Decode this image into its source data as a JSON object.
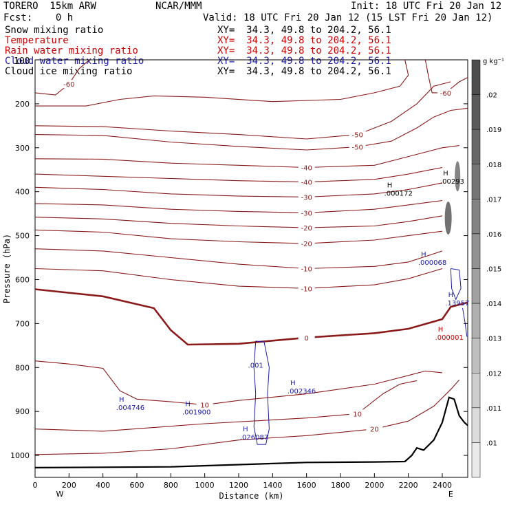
{
  "header": {
    "model": "TORERO  15km ARW",
    "center": "NCAR/MMM",
    "init": "Init: 18 UTC Fri 20 Jan 12",
    "fcst": "Fcst:    0 h",
    "valid": "Valid: 18 UTC Fri 20 Jan 12 (15 LST Fri 20 Jan 12)",
    "fields": [
      {
        "name": "Snow mixing ratio",
        "xy": "XY=  34.3, 49.8 to 204.2, 56.1",
        "color": "#000000"
      },
      {
        "name": "Temperature",
        "xy": "XY=  34.3, 49.8 to 204.2, 56.1",
        "color": "#cc0000"
      },
      {
        "name": "Rain water mixing ratio",
        "xy": "XY=  34.3, 49.8 to 204.2, 56.1",
        "color": "#cc0000"
      },
      {
        "name": "Cloud water mixing ratio",
        "xy": "XY=  34.3, 49.8 to 204.2, 56.1",
        "color": "#1a1aaa"
      },
      {
        "name": "Cloud ice mixing ratio",
        "xy": "XY=  34.3, 49.8 to 204.2, 56.1",
        "color": "#000000"
      }
    ],
    "overlap_label": "100"
  },
  "chart_data": {
    "type": "contour",
    "xlabel": "Distance (km)",
    "ylabel": "Pressure (hPa)",
    "xlim": [
      0,
      2550
    ],
    "ylim": [
      1050,
      100
    ],
    "x_ticks": [
      0,
      200,
      400,
      600,
      800,
      1000,
      1200,
      1400,
      1600,
      1800,
      2000,
      2200,
      2400
    ],
    "y_ticks": [
      200,
      300,
      400,
      500,
      600,
      700,
      800,
      900,
      1000
    ],
    "x_end_labels": [
      "W",
      "E"
    ],
    "colorbar": {
      "unit": "g kg⁻¹",
      "ticks": [
        ".02",
        ".019",
        ".018",
        ".017",
        ".016",
        ".015",
        ".014",
        ".013",
        ".012",
        ".011",
        ".01"
      ],
      "shades": [
        "#4d4d4d",
        "#5a5a5a",
        "#676767",
        "#757575",
        "#838383",
        "#929292",
        "#a1a1a1",
        "#b0b0b0",
        "#bfbfbf",
        "#cecece",
        "#dcdcdc",
        "#eaeaea"
      ]
    },
    "terrain": [
      [
        0,
        1028
      ],
      [
        400,
        1027
      ],
      [
        800,
        1026
      ],
      [
        1200,
        1021
      ],
      [
        1600,
        1016
      ],
      [
        2000,
        1015
      ],
      [
        2180,
        1014
      ],
      [
        2220,
        1000
      ],
      [
        2250,
        983
      ],
      [
        2290,
        988
      ],
      [
        2350,
        965
      ],
      [
        2400,
        925
      ],
      [
        2440,
        868
      ],
      [
        2470,
        872
      ],
      [
        2500,
        910
      ],
      [
        2530,
        925
      ],
      [
        2550,
        932
      ]
    ],
    "isotherms": [
      {
        "label": "-60",
        "points": [
          [
            0,
            175
          ],
          [
            120,
            180
          ],
          [
            200,
            155
          ],
          [
            260,
            120
          ],
          [
            320,
            100
          ]
        ]
      },
      {
        "label": "-60",
        "points": [
          [
            2300,
            100
          ],
          [
            2320,
            140
          ],
          [
            2340,
            175
          ],
          [
            2420,
            175
          ],
          [
            2500,
            150
          ],
          [
            2550,
            140
          ]
        ]
      },
      {
        "label": "",
        "points": [
          [
            0,
            205
          ],
          [
            300,
            205
          ],
          [
            500,
            190
          ],
          [
            700,
            182
          ],
          [
            1000,
            185
          ],
          [
            1400,
            195
          ],
          [
            1800,
            190
          ],
          [
            2000,
            175
          ],
          [
            2150,
            160
          ],
          [
            2200,
            135
          ],
          [
            2180,
            100
          ]
        ]
      },
      {
        "label": "-50",
        "points": [
          [
            0,
            250
          ],
          [
            400,
            252
          ],
          [
            800,
            262
          ],
          [
            1200,
            270
          ],
          [
            1600,
            280
          ],
          [
            1900,
            270
          ],
          [
            2100,
            240
          ],
          [
            2250,
            200
          ],
          [
            2350,
            160
          ],
          [
            2450,
            150
          ]
        ]
      },
      {
        "label": "-50",
        "points": [
          [
            0,
            270
          ],
          [
            400,
            272
          ],
          [
            800,
            287
          ],
          [
            1200,
            297
          ],
          [
            1600,
            305
          ],
          [
            1900,
            298
          ],
          [
            2100,
            285
          ],
          [
            2250,
            255
          ],
          [
            2350,
            230
          ],
          [
            2450,
            215
          ],
          [
            2550,
            210
          ]
        ]
      },
      {
        "label": "-40",
        "points": [
          [
            0,
            325
          ],
          [
            400,
            326
          ],
          [
            800,
            335
          ],
          [
            1200,
            340
          ],
          [
            1600,
            345
          ],
          [
            2000,
            340
          ],
          [
            2200,
            320
          ],
          [
            2400,
            300
          ],
          [
            2500,
            295
          ]
        ]
      },
      {
        "label": "-40",
        "points": [
          [
            0,
            360
          ],
          [
            400,
            365
          ],
          [
            800,
            370
          ],
          [
            1200,
            375
          ],
          [
            1600,
            378
          ],
          [
            2000,
            372
          ],
          [
            2200,
            360
          ],
          [
            2400,
            345
          ]
        ]
      },
      {
        "label": "-30",
        "points": [
          [
            0,
            390
          ],
          [
            400,
            395
          ],
          [
            800,
            405
          ],
          [
            1200,
            410
          ],
          [
            1600,
            412
          ],
          [
            2000,
            405
          ],
          [
            2200,
            395
          ],
          [
            2400,
            380
          ]
        ]
      },
      {
        "label": "-30",
        "points": [
          [
            0,
            427
          ],
          [
            400,
            430
          ],
          [
            800,
            440
          ],
          [
            1200,
            445
          ],
          [
            1600,
            448
          ],
          [
            2000,
            440
          ],
          [
            2200,
            430
          ],
          [
            2400,
            420
          ]
        ]
      },
      {
        "label": "-20",
        "points": [
          [
            0,
            458
          ],
          [
            400,
            462
          ],
          [
            800,
            472
          ],
          [
            1200,
            478
          ],
          [
            1600,
            482
          ],
          [
            2000,
            478
          ],
          [
            2200,
            468
          ],
          [
            2400,
            455
          ]
        ]
      },
      {
        "label": "-20",
        "points": [
          [
            0,
            487
          ],
          [
            400,
            492
          ],
          [
            800,
            507
          ],
          [
            1200,
            514
          ],
          [
            1600,
            518
          ],
          [
            2000,
            510
          ],
          [
            2200,
            500
          ],
          [
            2400,
            490
          ]
        ]
      },
      {
        "label": "-10",
        "points": [
          [
            0,
            530
          ],
          [
            400,
            535
          ],
          [
            800,
            550
          ],
          [
            1200,
            565
          ],
          [
            1600,
            575
          ],
          [
            2000,
            570
          ],
          [
            2200,
            560
          ],
          [
            2400,
            535
          ]
        ]
      },
      {
        "label": "-10",
        "points": [
          [
            0,
            575
          ],
          [
            400,
            580
          ],
          [
            800,
            600
          ],
          [
            1200,
            615
          ],
          [
            1600,
            620
          ],
          [
            2000,
            612
          ],
          [
            2200,
            598
          ],
          [
            2400,
            575
          ]
        ]
      },
      {
        "label": "0",
        "points": [
          [
            0,
            622
          ],
          [
            400,
            638
          ],
          [
            700,
            665
          ],
          [
            800,
            715
          ],
          [
            900,
            748
          ],
          [
            1200,
            746
          ],
          [
            1600,
            732
          ],
          [
            2000,
            722
          ],
          [
            2200,
            712
          ],
          [
            2400,
            690
          ],
          [
            2450,
            662
          ],
          [
            2550,
            652
          ]
        ]
      },
      {
        "label": "10",
        "points": [
          [
            0,
            785
          ],
          [
            200,
            792
          ],
          [
            400,
            802
          ],
          [
            500,
            853
          ],
          [
            600,
            872
          ],
          [
            800,
            878
          ],
          [
            1000,
            885
          ],
          [
            1200,
            875
          ],
          [
            1600,
            860
          ],
          [
            2000,
            838
          ],
          [
            2200,
            818
          ],
          [
            2300,
            808
          ],
          [
            2400,
            812
          ]
        ]
      },
      {
        "label": "10",
        "points": [
          [
            0,
            940
          ],
          [
            400,
            945
          ],
          [
            1000,
            928
          ],
          [
            1600,
            915
          ],
          [
            1900,
            905
          ],
          [
            2050,
            860
          ],
          [
            2150,
            838
          ],
          [
            2250,
            830
          ]
        ]
      },
      {
        "label": "20",
        "points": [
          [
            0,
            998
          ],
          [
            400,
            995
          ],
          [
            800,
            985
          ],
          [
            1200,
            965
          ],
          [
            1600,
            955
          ],
          [
            2000,
            940
          ],
          [
            2200,
            922
          ],
          [
            2350,
            888
          ],
          [
            2450,
            850
          ],
          [
            2500,
            828
          ]
        ]
      }
    ],
    "highs": [
      {
        "field": "cloud_water",
        "x": 510,
        "p": 878,
        "value": ".004746"
      },
      {
        "field": "cloud_water",
        "x": 900,
        "p": 888,
        "value": ".001900"
      },
      {
        "field": "cloud_water",
        "x": 1240,
        "p": 945,
        "value": ".026087"
      },
      {
        "field": "cloud_water",
        "x": 1520,
        "p": 840,
        "value": ".002346"
      },
      {
        "field": "cloud_water",
        "x": 2290,
        "p": 548,
        "value": ".000068"
      },
      {
        "field": "cloud_water",
        "x": 2450,
        "p": 640,
        "value": ".13957"
      },
      {
        "field": "rain_water",
        "x": 2390,
        "p": 718,
        "value": ".000001"
      },
      {
        "field": "snow",
        "x": 2090,
        "p": 390,
        "value": ".000172"
      },
      {
        "field": "snow",
        "x": 2420,
        "p": 363,
        "value": ".00293"
      }
    ],
    "cloud_water_contour_label": ".001"
  }
}
